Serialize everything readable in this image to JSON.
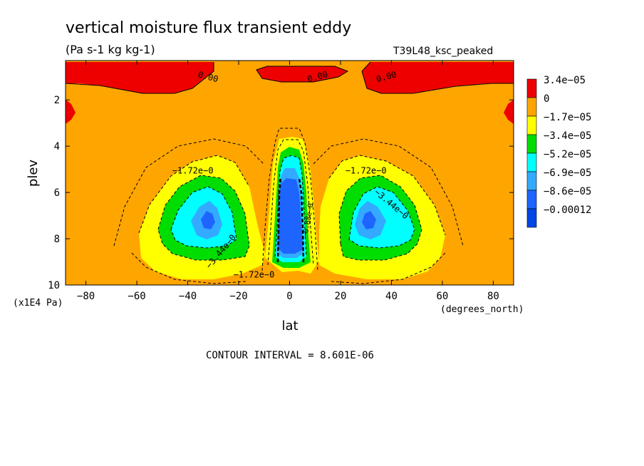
{
  "chart_data": {
    "type": "contour",
    "title": "vertical moisture flux transient eddy",
    "units": "(Pa s-1 kg kg-1)",
    "run_label": "T39L48_ksc_peaked",
    "xlabel": "lat",
    "xunit": "(degrees_north)",
    "ylabel": "plev",
    "yunit": "(x1E4 Pa)",
    "xlim": [
      -88,
      88
    ],
    "ylim": [
      10,
      0.3
    ],
    "x_ticks": [
      -80,
      -60,
      -40,
      -20,
      0,
      20,
      40,
      60,
      80
    ],
    "x_tick_labels": [
      "−80",
      "−60",
      "−40",
      "−20",
      "0",
      "20",
      "40",
      "60",
      "80"
    ],
    "y_ticks": [
      2,
      4,
      6,
      8,
      10
    ],
    "y_tick_labels": [
      "2",
      "4",
      "6",
      "8",
      "10"
    ],
    "footer": "CONTOUR INTERVAL = 8.601E-06",
    "contour_interval": 8.601e-06,
    "contour_labels": [
      {
        "text": "0.00",
        "lat": -32,
        "plev": 1.0
      },
      {
        "text": "0.00",
        "lat": 11,
        "plev": 1.0
      },
      {
        "text": "0.00",
        "lat": 38,
        "plev": 1.0
      },
      {
        "text": "−1.72e−0",
        "lat": -38,
        "plev": 5.05
      },
      {
        "text": "−1.72e−0",
        "lat": 30,
        "plev": 5.05
      },
      {
        "text": "−3.44e−0",
        "lat": 40,
        "plev": 6.5
      },
      {
        "text": "−3.44e−0",
        "lat": -27,
        "plev": 8.55
      },
      {
        "text": "−1.72e−0",
        "lat": -14,
        "plev": 9.55
      },
      {
        "text": "−6.88e−0",
        "lat": 7,
        "plev": 7.2
      }
    ],
    "legend": {
      "entries": [
        {
          "label": "3.4e−05",
          "color": "#ee0000"
        },
        {
          "label": "0",
          "color": "#ffa500"
        },
        {
          "label": "−1.7e−05",
          "color": "#ffff00"
        },
        {
          "label": "−3.4e−05",
          "color": "#00dd00"
        },
        {
          "label": "−5.2e−05",
          "color": "#00ffff"
        },
        {
          "label": "−6.9e−05",
          "color": "#33aaff"
        },
        {
          "label": "−8.6e−05",
          "color": "#1e64ff"
        },
        {
          "label": "−0.00012",
          "color": "#0046e6"
        }
      ]
    },
    "fill_levels": {
      "positive": "#ee0000",
      "zero": "#ffa500",
      "l1": "#ffff00",
      "l2": "#00dd00",
      "l3": "#00ffff",
      "l4": "#33aaff",
      "l5": "#1e64ff"
    }
  }
}
